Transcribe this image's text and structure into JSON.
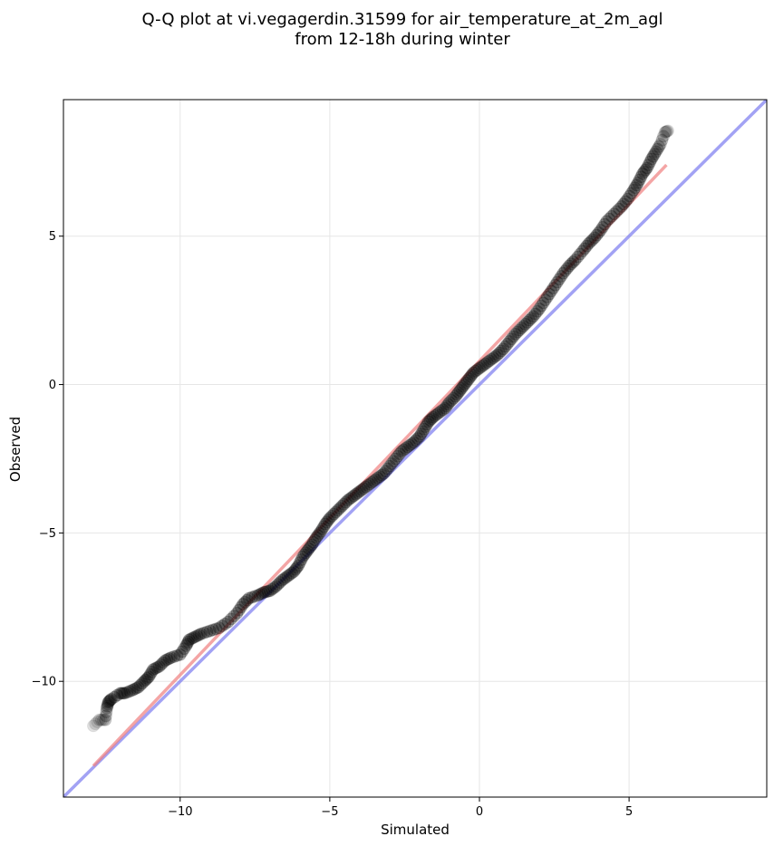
{
  "chart_data": {
    "type": "scatter",
    "title_line1": "Q-Q plot at vi.vegagerdin.31599 for air_temperature_at_2m_agl",
    "title_line2": "from 12-18h during winter",
    "xlabel": "Simulated",
    "ylabel": "Observed",
    "xlim": [
      -13.9,
      9.6
    ],
    "ylim": [
      -13.9,
      9.6
    ],
    "xticks": [
      -10,
      -5,
      0,
      5
    ],
    "yticks": [
      -10,
      -5,
      0,
      5
    ],
    "xtick_labels": [
      "−10",
      "−5",
      "0",
      "5"
    ],
    "ytick_labels": [
      "−10",
      "−5",
      "0",
      "5"
    ],
    "grid": true,
    "identity_line": {
      "color": "#7b7bef"
    },
    "fit_line": {
      "x": [
        -12.9,
        6.25
      ],
      "y": [
        -12.85,
        7.4
      ],
      "color": "#f07f7f"
    },
    "quantiles": [
      [
        -12.9,
        -11.5
      ],
      [
        -12.7,
        -11.3
      ],
      [
        -12.5,
        -11.3
      ],
      [
        -12.45,
        -10.9
      ],
      [
        -12.4,
        -10.7
      ],
      [
        -12.3,
        -10.6
      ],
      [
        -12.0,
        -10.4
      ],
      [
        -11.85,
        -10.4
      ],
      [
        -11.6,
        -10.3
      ],
      [
        -11.4,
        -10.2
      ],
      [
        -11.2,
        -10.0
      ],
      [
        -11.05,
        -9.85
      ],
      [
        -10.9,
        -9.6
      ],
      [
        -10.7,
        -9.5
      ],
      [
        -10.5,
        -9.3
      ],
      [
        -10.3,
        -9.2
      ],
      [
        -10.0,
        -9.1
      ],
      [
        -9.8,
        -8.8
      ],
      [
        -9.7,
        -8.6
      ],
      [
        -9.5,
        -8.5
      ],
      [
        -9.3,
        -8.4
      ],
      [
        -9.0,
        -8.3
      ],
      [
        -8.7,
        -8.2
      ],
      [
        -8.4,
        -8.0
      ],
      [
        -8.1,
        -7.7
      ],
      [
        -7.9,
        -7.4
      ],
      [
        -7.7,
        -7.2
      ],
      [
        -7.4,
        -7.1
      ],
      [
        -7.2,
        -7.0
      ],
      [
        -7.0,
        -6.95
      ],
      [
        -6.8,
        -6.8
      ],
      [
        -6.6,
        -6.6
      ],
      [
        -6.4,
        -6.45
      ],
      [
        -6.2,
        -6.3
      ],
      [
        -6.05,
        -6.1
      ],
      [
        -5.9,
        -5.8
      ],
      [
        -5.75,
        -5.6
      ],
      [
        -5.6,
        -5.4
      ],
      [
        -5.45,
        -5.15
      ],
      [
        -5.3,
        -4.95
      ],
      [
        -5.15,
        -4.7
      ],
      [
        -5.0,
        -4.5
      ],
      [
        -4.8,
        -4.3
      ],
      [
        -4.6,
        -4.1
      ],
      [
        -4.4,
        -3.9
      ],
      [
        -4.2,
        -3.75
      ],
      [
        -4.0,
        -3.6
      ],
      [
        -3.8,
        -3.45
      ],
      [
        -3.6,
        -3.3
      ],
      [
        -3.4,
        -3.15
      ],
      [
        -3.2,
        -3.0
      ],
      [
        -3.0,
        -2.75
      ],
      [
        -2.8,
        -2.5
      ],
      [
        -2.6,
        -2.25
      ],
      [
        -2.4,
        -2.1
      ],
      [
        -2.2,
        -1.95
      ],
      [
        -2.0,
        -1.75
      ],
      [
        -1.85,
        -1.5
      ],
      [
        -1.7,
        -1.25
      ],
      [
        -1.55,
        -1.1
      ],
      [
        -1.35,
        -0.95
      ],
      [
        -1.15,
        -0.8
      ],
      [
        -1.0,
        -0.6
      ],
      [
        -0.8,
        -0.4
      ],
      [
        -0.65,
        -0.2
      ],
      [
        -0.5,
        0.0
      ],
      [
        -0.35,
        0.2
      ],
      [
        -0.2,
        0.4
      ],
      [
        0.0,
        0.55
      ],
      [
        0.2,
        0.7
      ],
      [
        0.4,
        0.85
      ],
      [
        0.6,
        1.0
      ],
      [
        0.8,
        1.2
      ],
      [
        1.0,
        1.45
      ],
      [
        1.2,
        1.7
      ],
      [
        1.4,
        1.9
      ],
      [
        1.6,
        2.1
      ],
      [
        1.8,
        2.3
      ],
      [
        2.0,
        2.55
      ],
      [
        2.2,
        2.85
      ],
      [
        2.4,
        3.15
      ],
      [
        2.6,
        3.45
      ],
      [
        2.8,
        3.75
      ],
      [
        3.0,
        4.0
      ],
      [
        3.2,
        4.2
      ],
      [
        3.45,
        4.5
      ],
      [
        3.65,
        4.75
      ],
      [
        3.85,
        4.95
      ],
      [
        4.05,
        5.2
      ],
      [
        4.25,
        5.5
      ],
      [
        4.5,
        5.75
      ],
      [
        4.75,
        6.0
      ],
      [
        4.95,
        6.25
      ],
      [
        5.15,
        6.55
      ],
      [
        5.3,
        6.8
      ],
      [
        5.45,
        7.1
      ],
      [
        5.6,
        7.3
      ],
      [
        5.75,
        7.6
      ],
      [
        5.9,
        7.85
      ],
      [
        6.05,
        8.1
      ],
      [
        6.2,
        8.5
      ],
      [
        6.3,
        8.55
      ]
    ]
  }
}
